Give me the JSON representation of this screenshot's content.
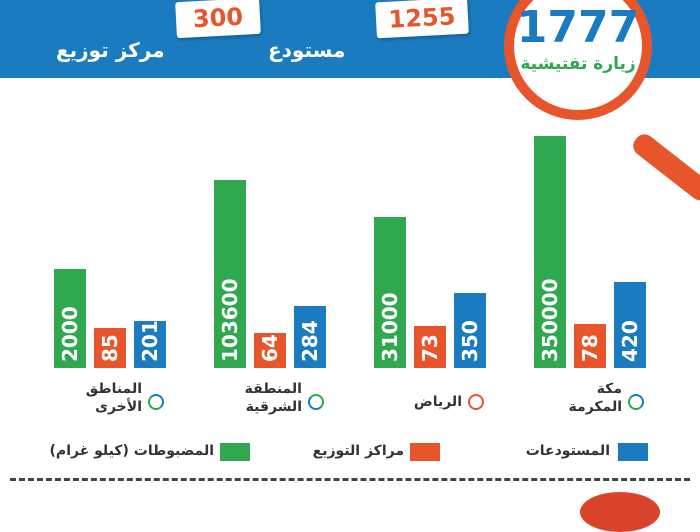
{
  "header": {
    "warehouses_label": "مستودع",
    "warehouses_value": "1255",
    "centers_label": "مركز توزيع",
    "centers_value": "300",
    "visits_value": "1777",
    "visits_label": "زيارة تفتيشية"
  },
  "colors": {
    "header": "#1a7bc1",
    "seized": "#2fa84f",
    "centers": "#e8552a",
    "warehouses": "#1a7bc1"
  },
  "chart_data": {
    "type": "bar",
    "categories": [
      "المناطق الأخرى",
      "المنطقة الشرقية",
      "الرياض",
      "مكة المكرمة"
    ],
    "category_lines": [
      [
        "المناطق",
        "الأخرى"
      ],
      [
        "المنطقة",
        "الشرقية"
      ],
      [
        "الرياض"
      ],
      [
        "مكة",
        "المكرمة"
      ]
    ],
    "series": [
      {
        "name": "المضبوطات (كيلو غرام)",
        "values": [
          2000,
          103600,
          31000,
          350000
        ],
        "color": "#2fa84f"
      },
      {
        "name": "مراكز التوزيع",
        "values": [
          85,
          64,
          73,
          78
        ],
        "color": "#e8552a"
      },
      {
        "name": "المستودعات",
        "values": [
          201,
          284,
          350,
          420
        ],
        "color": "#1a7bc1"
      }
    ],
    "legend_position": "bottom"
  }
}
